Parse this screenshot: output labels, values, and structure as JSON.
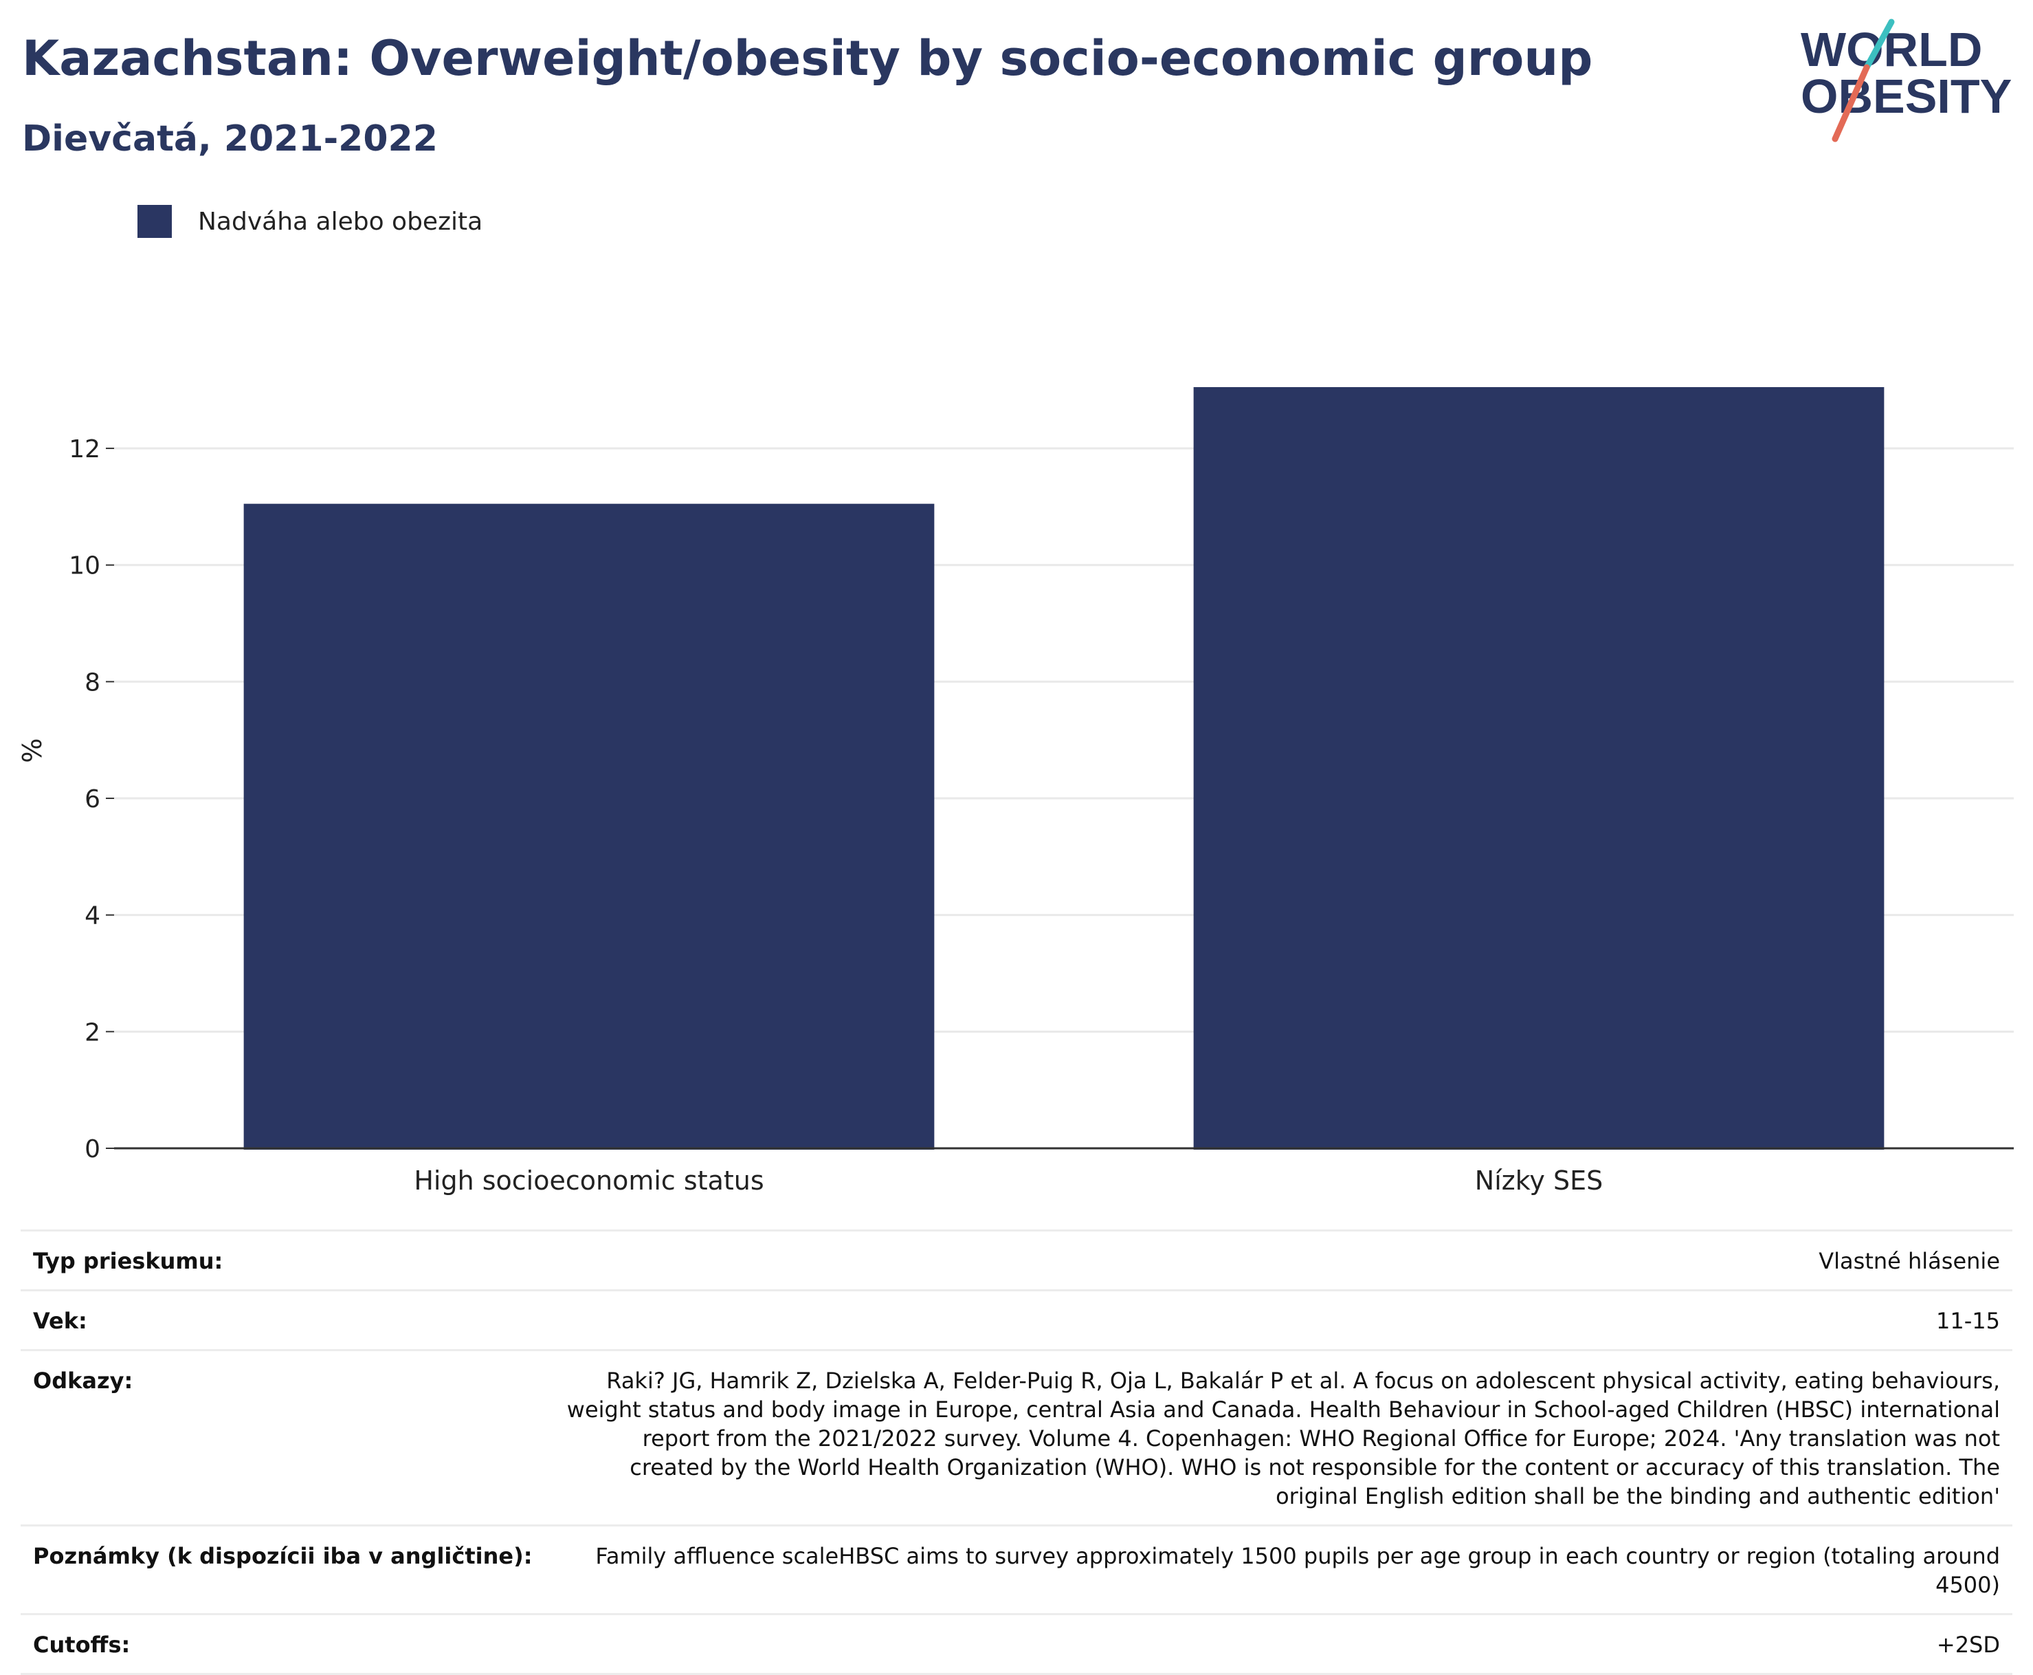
{
  "header": {
    "title": "Kazachstan: Overweight/obesity by socio-economic group",
    "subtitle": "Dievčatá, 2021-2022"
  },
  "logo": {
    "line1": "WORLD",
    "line2": "OBESITY",
    "colors": {
      "text": "#2a3760",
      "slash_top": "#3cbfc0",
      "slash_bottom": "#e36a56"
    }
  },
  "colors": {
    "bar": "#2a3662",
    "axis": "#333333",
    "grid": "#e9e9e9"
  },
  "chart_data": {
    "type": "bar",
    "categories": [
      "High socioeconomic status",
      "Nízky SES"
    ],
    "series": [
      {
        "name": "Nadváha alebo obezita",
        "values": [
          11.05,
          13.05
        ]
      }
    ],
    "xlabel": "",
    "ylabel": "%",
    "ylim": [
      0,
      13.05
    ],
    "yticks": [
      0,
      2,
      4,
      6,
      8,
      10,
      12
    ],
    "grid": true,
    "legend": "top-left"
  },
  "table": {
    "rows": [
      {
        "key": "Typ prieskumu:",
        "value": "Vlastné hlásenie"
      },
      {
        "key": "Vek:",
        "value": "11-15"
      },
      {
        "key": "Odkazy:",
        "value": "Raki? JG, Hamrik Z, Dzielska A, Felder-Puig R, Oja L, Bakalár P et al. A focus on adolescent physical activity, eating behaviours, weight status and body image in Europe, central Asia and Canada. Health Behaviour in School-aged Children (HBSC) international report from the 2021/2022 survey. Volume 4. Copenhagen: WHO Regional Office for Europe; 2024. 'Any translation was not created by the World Health Organization (WHO). WHO is not responsible for the content or accuracy of this translation. The original English edition shall be the binding and authentic edition'"
      },
      {
        "key": "Poznámky (k dispozícii iba v angličtine):",
        "value": "Family affluence scaleHBSC aims to survey approximately 1500 pupils per age group in each country or region (totaling around 4500)"
      },
      {
        "key": "Cutoffs:",
        "value": "+2SD"
      }
    ]
  }
}
